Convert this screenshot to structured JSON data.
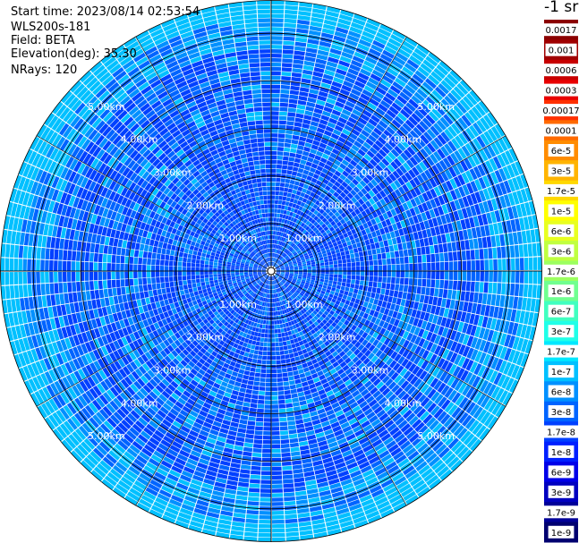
{
  "info": {
    "start_time_label": "Start time:",
    "start_time": "2023/08/14 02:53:54",
    "instrument": "WLS200s-181",
    "field_label": "Field:",
    "field": "BETA",
    "elevation_label": "Elevation(deg):",
    "elevation": "35.30",
    "nrays_label": "NRays:",
    "nrays": "120"
  },
  "colorbar": {
    "unit": "-1 sr",
    "ticks": [
      "0.0017",
      "0.001",
      "0.0006",
      "0.0003",
      "0.00017",
      "0.0001",
      "6e-5",
      "3e-5",
      "1.7e-5",
      "1e-5",
      "6e-6",
      "3e-6",
      "1.7e-6",
      "1e-6",
      "6e-7",
      "3e-7",
      "1.7e-7",
      "1e-7",
      "6e-8",
      "3e-8",
      "1.7e-8",
      "1e-8",
      "6e-9",
      "3e-9",
      "1.7e-9",
      "1e-9"
    ],
    "colors": [
      "#8b0000",
      "#a00000",
      "#c80000",
      "#e80000",
      "#ff3000",
      "#ff6a00",
      "#ff8c00",
      "#ffb400",
      "#ffd800",
      "#ffff00",
      "#e8ff20",
      "#c0ff40",
      "#9cff60",
      "#70ff90",
      "#40ffc0",
      "#20ffe8",
      "#00e8ff",
      "#00c0ff",
      "#0090ff",
      "#0064ff",
      "#0040ff",
      "#0020ff",
      "#0000e8",
      "#0000c0",
      "#000098",
      "#000070"
    ]
  },
  "chart_data": {
    "type": "heatmap",
    "projection": "polar PPI",
    "field": "BETA",
    "unit": "-1 sr",
    "n_rays": 120,
    "range_rings_km": [
      1,
      2,
      3,
      4,
      5
    ],
    "ring_labels": [
      "1.00km",
      "2.00km",
      "3.00km",
      "4.00km",
      "5.00km"
    ],
    "max_range_km": 5.7,
    "dominant_values": [
      "1.7e-8",
      "3e-8",
      "6e-8",
      "1e-7",
      "1.7e-7"
    ],
    "outer_edge_value": "1e-7"
  }
}
